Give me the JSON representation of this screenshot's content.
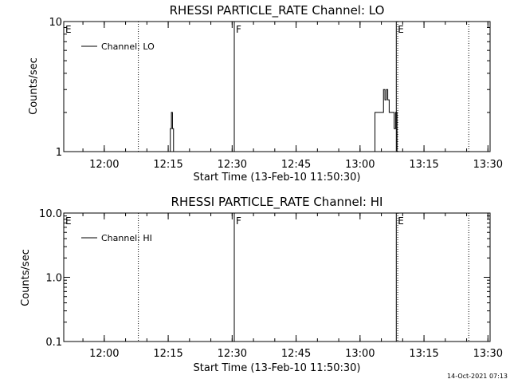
{
  "chart_data": [
    {
      "type": "line",
      "title": "RHESSI PARTICLE_RATE Channel: LO",
      "xlabel": "Start Time (13-Feb-10 11:50:30)",
      "ylabel": "Counts/sec",
      "yscale": "log",
      "ylim": [
        1,
        10
      ],
      "y_ticks": [
        "1",
        "10"
      ],
      "x_ticks": [
        "12:00",
        "12:15",
        "12:30",
        "12:45",
        "13:00",
        "13:15",
        "13:30"
      ],
      "legend": "Channel: LO",
      "legend_position": "top-left",
      "grid": false,
      "event_markers": [
        {
          "label": "E",
          "time": "11:50:30",
          "style": "solid"
        },
        {
          "label": "",
          "time": "12:08:00",
          "style": "dotted"
        },
        {
          "label": "F",
          "time": "12:30:30",
          "style": "solid"
        },
        {
          "label": "E",
          "time": "13:08:30",
          "style": "solid"
        },
        {
          "label": "",
          "time": "13:08:50",
          "style": "dotted"
        },
        {
          "label": "",
          "time": "13:25:30",
          "style": "dotted"
        }
      ],
      "series": [
        {
          "name": "Channel: LO",
          "points": [
            [
              "12:15:30",
              1
            ],
            [
              "12:15:30",
              1.5
            ],
            [
              "12:15:45",
              1.5
            ],
            [
              "12:15:45",
              2
            ],
            [
              "12:16:00",
              2
            ],
            [
              "12:16:00",
              1.5
            ],
            [
              "12:16:15",
              1.5
            ],
            [
              "12:16:15",
              1
            ],
            [
              "13:03:30",
              1
            ],
            [
              "13:03:30",
              2
            ],
            [
              "13:05:30",
              2
            ],
            [
              "13:05:30",
              3
            ],
            [
              "13:05:50",
              3
            ],
            [
              "13:05:50",
              2.5
            ],
            [
              "13:06:10",
              2.5
            ],
            [
              "13:06:10",
              3
            ],
            [
              "13:06:30",
              3
            ],
            [
              "13:06:30",
              2.5
            ],
            [
              "13:06:50",
              2.5
            ],
            [
              "13:06:50",
              2
            ],
            [
              "13:08:00",
              2
            ],
            [
              "13:08:00",
              1.5
            ],
            [
              "13:08:20",
              1.5
            ],
            [
              "13:08:20",
              2
            ],
            [
              "13:08:40",
              2
            ],
            [
              "13:08:40",
              1
            ]
          ]
        }
      ]
    },
    {
      "type": "line",
      "title": "RHESSI PARTICLE_RATE Channel: HI",
      "xlabel": "Start Time (13-Feb-10 11:50:30)",
      "ylabel": "Counts/sec",
      "yscale": "log",
      "ylim": [
        0.1,
        10
      ],
      "y_ticks": [
        "0.1",
        "1.0",
        "10.0"
      ],
      "x_ticks": [
        "12:00",
        "12:15",
        "12:30",
        "12:45",
        "13:00",
        "13:15",
        "13:30"
      ],
      "legend": "Channel: HI",
      "legend_position": "top-left",
      "grid": false,
      "event_markers": [
        {
          "label": "E",
          "time": "11:50:30",
          "style": "solid"
        },
        {
          "label": "",
          "time": "12:08:00",
          "style": "dotted"
        },
        {
          "label": "F",
          "time": "12:30:30",
          "style": "solid"
        },
        {
          "label": "E",
          "time": "13:08:30",
          "style": "solid"
        },
        {
          "label": "",
          "time": "13:08:50",
          "style": "dotted"
        },
        {
          "label": "",
          "time": "13:25:30",
          "style": "dotted"
        }
      ],
      "series": [
        {
          "name": "Channel: HI",
          "points": []
        }
      ]
    }
  ],
  "footer": {
    "timestamp": "14-Oct-2021 07:13"
  }
}
